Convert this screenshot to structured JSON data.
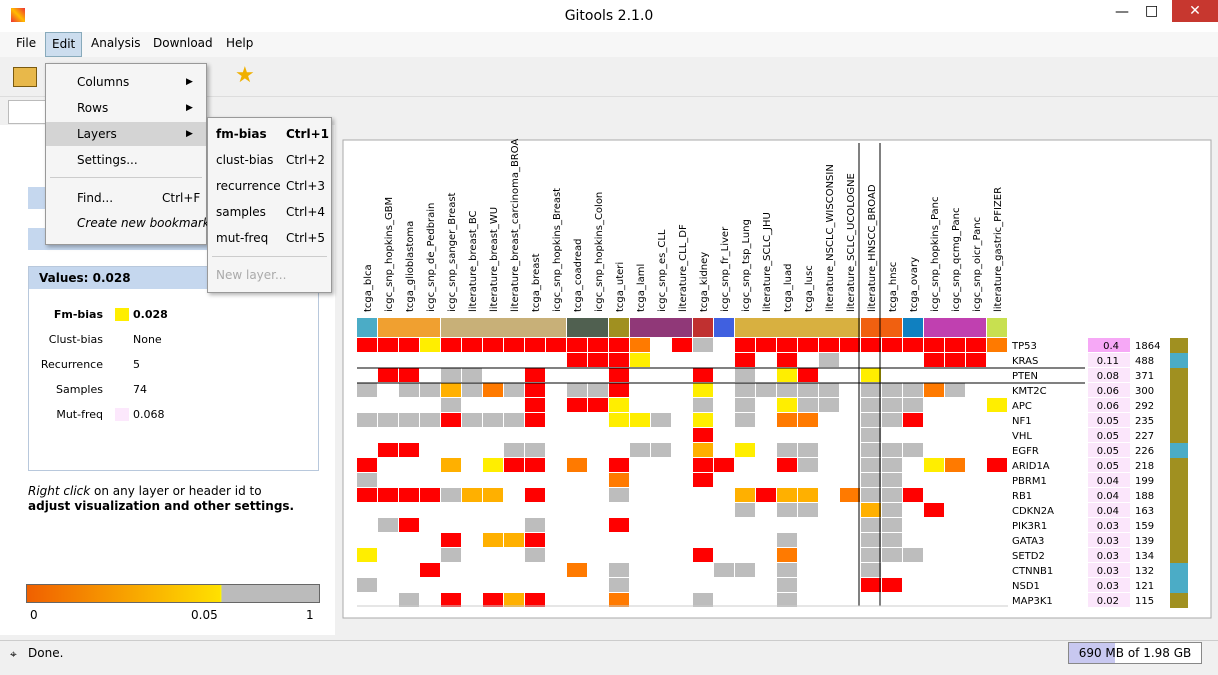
{
  "window": {
    "title": "Gitools 2.1.0"
  },
  "menu": [
    "File",
    "Edit",
    "Analysis",
    "Download",
    "Help"
  ],
  "edit_menu": [
    {
      "label": "Columns"
    },
    {
      "label": "Rows"
    },
    {
      "label": "Layers"
    },
    {
      "label": "Settings..."
    },
    {
      "label": "Find...",
      "shortcut": "Ctrl+F"
    },
    {
      "label": "Create new bookmark"
    }
  ],
  "layers_menu": [
    {
      "label": "fm-bias",
      "shortcut": "Ctrl+1"
    },
    {
      "label": "clust-bias",
      "shortcut": "Ctrl+2"
    },
    {
      "label": "recurrence",
      "shortcut": "Ctrl+3"
    },
    {
      "label": "samples",
      "shortcut": "Ctrl+4"
    },
    {
      "label": "mut-freq",
      "shortcut": "Ctrl+5"
    },
    {
      "label": "New layer..."
    }
  ],
  "values_panel": {
    "title": "Values: 0.028",
    "rows": [
      {
        "label": "Fm-bias",
        "value": "0.028"
      },
      {
        "label": "Clust-bias",
        "value": "None"
      },
      {
        "label": "Recurrence",
        "value": "5"
      },
      {
        "label": "Samples",
        "value": "74"
      },
      {
        "label": "Mut-freq",
        "value": "0.068"
      }
    ]
  },
  "hint": {
    "italic": "Right click",
    "rest": " on any layer or header id to",
    "bold": "adjust visualization and other settings."
  },
  "scale": [
    "0",
    "0.05",
    "1"
  ],
  "status": {
    "text": "Done.",
    "memory": "690 MB of 1.98 GB"
  },
  "heatmap": {
    "columns": [
      "tcga_blca",
      "icgc_snp_hopkins_GBM",
      "tcga_glioblastoma",
      "icgc_snp_de_Pedbrain",
      "icgc_snp_sanger_Breast",
      "literature_breast_BC",
      "literature_breast_WU",
      "literature_breast_carcinoma_BROA",
      "tcga_breast",
      "icgc_snp_hopkins_Breast",
      "tcga_coadread",
      "icgc_snp_hopkins_Colon",
      "tcga_uteri",
      "tcga_laml",
      "icgc_snp_es_CLL",
      "literature_CLL_DF",
      "tcga_kidney",
      "icgc_snp_fr_Liver",
      "icgc_snp_tsp_Lung",
      "literature_SCLC_JHU",
      "tcga_luad",
      "tcga_lusc",
      "literature_NSCLC_WISCONSIN",
      "literature_SCLC_UCOLOGNE",
      "literature_HNSCC_BROAD",
      "tcga_hnsc",
      "tcga_ovary",
      "icgc_snp_hopkins_Panc",
      "icgc_snp_qcmg_Panc",
      "icgc_snp_oicr_Panc",
      "literature_gastric_PFIZER"
    ],
    "rows": [
      {
        "gene": "TP53",
        "value": "0.4",
        "count": "1864"
      },
      {
        "gene": "KRAS",
        "value": "0.11",
        "count": "488"
      },
      {
        "gene": "PTEN",
        "value": "0.08",
        "count": "371"
      },
      {
        "gene": "KMT2C",
        "value": "0.06",
        "count": "300"
      },
      {
        "gene": "APC",
        "value": "0.06",
        "count": "292"
      },
      {
        "gene": "NF1",
        "value": "0.05",
        "count": "235"
      },
      {
        "gene": "VHL",
        "value": "0.05",
        "count": "227"
      },
      {
        "gene": "EGFR",
        "value": "0.05",
        "count": "226"
      },
      {
        "gene": "ARID1A",
        "value": "0.05",
        "count": "218"
      },
      {
        "gene": "PBRM1",
        "value": "0.04",
        "count": "199"
      },
      {
        "gene": "RB1",
        "value": "0.04",
        "count": "188"
      },
      {
        "gene": "CDKN2A",
        "value": "0.04",
        "count": "163"
      },
      {
        "gene": "PIK3R1",
        "value": "0.03",
        "count": "159"
      },
      {
        "gene": "GATA3",
        "value": "0.03",
        "count": "139"
      },
      {
        "gene": "SETD2",
        "value": "0.03",
        "count": "134"
      },
      {
        "gene": "CTNNB1",
        "value": "0.03",
        "count": "132"
      },
      {
        "gene": "NSD1",
        "value": "0.03",
        "count": "121"
      },
      {
        "gene": "MAP3K1",
        "value": "0.02",
        "count": "115"
      }
    ]
  }
}
